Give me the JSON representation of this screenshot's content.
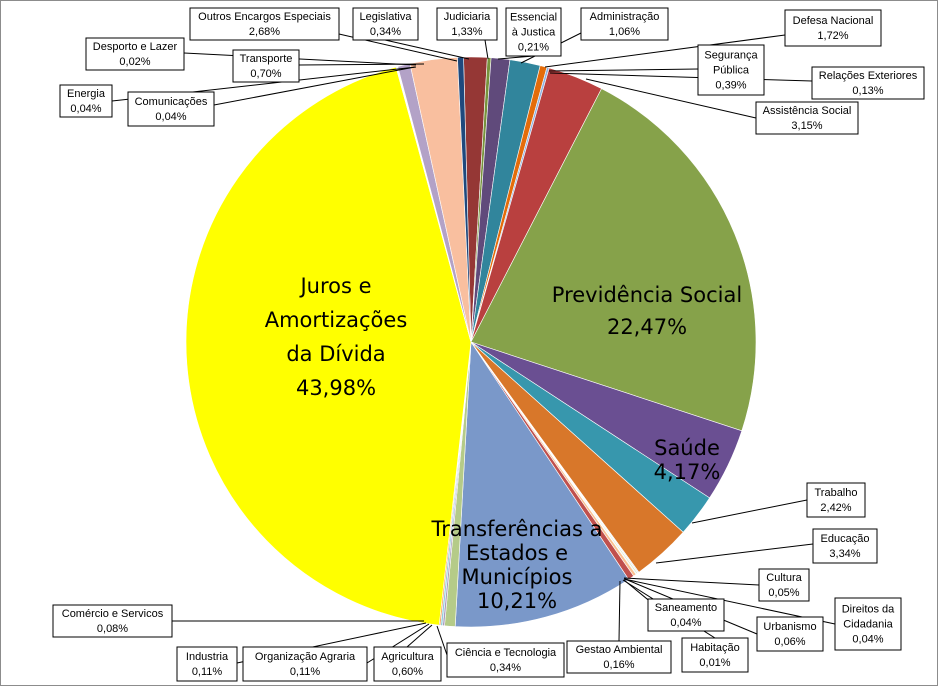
{
  "chart_data": {
    "type": "pie",
    "title": "",
    "slices": [
      {
        "name": "Judiciaria",
        "value": 1.33,
        "label": "1,33%",
        "color": "#953735"
      },
      {
        "name": "Essencial à Justica",
        "value": 0.21,
        "label": "0,21%",
        "color": "#77933c"
      },
      {
        "name": "Administração",
        "value": 1.06,
        "label": "1,06%",
        "color": "#604a7b"
      },
      {
        "name": "Defesa Nacional",
        "value": 1.72,
        "label": "1,72%",
        "color": "#31859c"
      },
      {
        "name": "Segurança Pública",
        "value": 0.39,
        "label": "0,39%",
        "color": "#e46c0a"
      },
      {
        "name": "Relações Exteriores",
        "value": 0.13,
        "label": "0,13%",
        "color": "#8eb4e3"
      },
      {
        "name": "Assistência Social",
        "value": 3.15,
        "label": "3,15%",
        "color": "#b9403f"
      },
      {
        "name": "Previdência Social",
        "value": 22.47,
        "label": "22,47%",
        "color": "#86a24a"
      },
      {
        "name": "Saúde",
        "value": 4.17,
        "label": "4,17%",
        "color": "#6a4f92"
      },
      {
        "name": "Trabalho",
        "value": 2.42,
        "label": "2,42%",
        "color": "#3797ad"
      },
      {
        "name": "Educação",
        "value": 3.34,
        "label": "3,34%",
        "color": "#d8772a"
      },
      {
        "name": "Cultura",
        "value": 0.05,
        "label": "0,05%",
        "color": "#9bb7d9"
      },
      {
        "name": "Direitos da Cidadania",
        "value": 0.04,
        "label": "0,04%",
        "color": "#d99694"
      },
      {
        "name": "Urbanismo",
        "value": 0.06,
        "label": "0,06%",
        "color": "#c3d69b"
      },
      {
        "name": "Habitação",
        "value": 0.01,
        "label": "0,01%",
        "color": "#b3a2c7"
      },
      {
        "name": "Saneamento",
        "value": 0.04,
        "label": "0,04%",
        "color": "#93cddd"
      },
      {
        "name": "Gestao Ambiental",
        "value": 0.16,
        "label": "0,16%",
        "color": "#fac090"
      },
      {
        "name": "Ciência e Tecnologia",
        "value": 0.34,
        "label": "0,34%",
        "color": "#c0504d"
      },
      {
        "name": "Transferências a Estados e Municípios",
        "value": 10.21,
        "label": "10,21%",
        "color": "#7a98c9"
      },
      {
        "name": "Agricultura",
        "value": 0.6,
        "label": "0,60%",
        "color": "#b5cb88"
      },
      {
        "name": "Organização Agraria",
        "value": 0.11,
        "label": "0,11%",
        "color": "#a99bbd"
      },
      {
        "name": "Industria",
        "value": 0.11,
        "label": "0,11%",
        "color": "#92cddc"
      },
      {
        "name": "Comércio e Servicos",
        "value": 0.08,
        "label": "0,08%",
        "color": "#f79646"
      },
      {
        "name": "Juros e Amortizações da Dívida",
        "value": 43.98,
        "label": "43,98%",
        "color": "#ffff00"
      },
      {
        "name": "Energia",
        "value": 0.04,
        "label": "0,04%",
        "color": "#dbeef4"
      },
      {
        "name": "Comunicações",
        "value": 0.04,
        "label": "0,04%",
        "color": "#ebf1de"
      },
      {
        "name": "Desporto e Lazer",
        "value": 0.02,
        "label": "0,02%",
        "color": "#e6b9b8"
      },
      {
        "name": "Transporte",
        "value": 0.7,
        "label": "0,70%",
        "color": "#b3a2c7"
      },
      {
        "name": "Outros Encargos Especiais",
        "value": 2.68,
        "label": "2,68%",
        "color": "#f9bf9f"
      },
      {
        "name": "Legislativa",
        "value": 0.34,
        "label": "0,34%",
        "color": "#1f497d"
      }
    ],
    "callouts": [
      {
        "lines": [
          "Outros Encargos Especiais",
          "2,68%"
        ]
      },
      {
        "lines": [
          "Legislativa",
          "0,34%"
        ]
      },
      {
        "lines": [
          "Judiciaria",
          "1,33%"
        ]
      },
      {
        "lines": [
          "Essencial",
          "à Justica",
          "0,21%"
        ]
      },
      {
        "lines": [
          "Administração",
          "1,06%"
        ]
      },
      {
        "lines": [
          "Defesa Nacional",
          "1,72%"
        ]
      },
      {
        "lines": [
          "Desporto e Lazer",
          "0,02%"
        ]
      },
      {
        "lines": [
          "Transporte",
          "0,70%"
        ]
      },
      {
        "lines": [
          "Segurança",
          "Pública",
          "0,39%"
        ]
      },
      {
        "lines": [
          "Relações Exteriores",
          "0,13%"
        ]
      },
      {
        "lines": [
          "Energia",
          "0,04%"
        ]
      },
      {
        "lines": [
          "Comunicações",
          "0,04%"
        ]
      },
      {
        "lines": [
          "Assistência Social",
          "3,15%"
        ]
      },
      {
        "lines": [
          "Trabalho",
          "2,42%"
        ]
      },
      {
        "lines": [
          "Educação",
          "3,34%"
        ]
      },
      {
        "lines": [
          "Cultura",
          "0,05%"
        ]
      },
      {
        "lines": [
          "Direitos da",
          "Cidadania",
          "0,04%"
        ]
      },
      {
        "lines": [
          "Saneamento",
          "0,04%"
        ]
      },
      {
        "lines": [
          "Urbanismo",
          "0,06%"
        ]
      },
      {
        "lines": [
          "Comércio e Servicos",
          "0,08%"
        ]
      },
      {
        "lines": [
          "Gestao Ambiental",
          "0,16%"
        ]
      },
      {
        "lines": [
          "Habitação",
          "0,01%"
        ]
      },
      {
        "lines": [
          "Industria",
          "0,11%"
        ]
      },
      {
        "lines": [
          "Organização Agraria",
          "0,11%"
        ]
      },
      {
        "lines": [
          "Agricultura",
          "0,60%"
        ]
      },
      {
        "lines": [
          "Ciência e Tecnologia",
          "0,34%"
        ]
      }
    ],
    "inside_labels": [
      {
        "lines": [
          "Juros e",
          "Amortizações",
          "da Dívida",
          "43,98%"
        ]
      },
      {
        "lines": [
          "Previdência Social",
          "22,47%"
        ]
      },
      {
        "lines": [
          "Saúde",
          "4,17%"
        ]
      },
      {
        "lines": [
          "Transferências a",
          "Estados e",
          "Municípios",
          "10,21%"
        ]
      }
    ]
  }
}
